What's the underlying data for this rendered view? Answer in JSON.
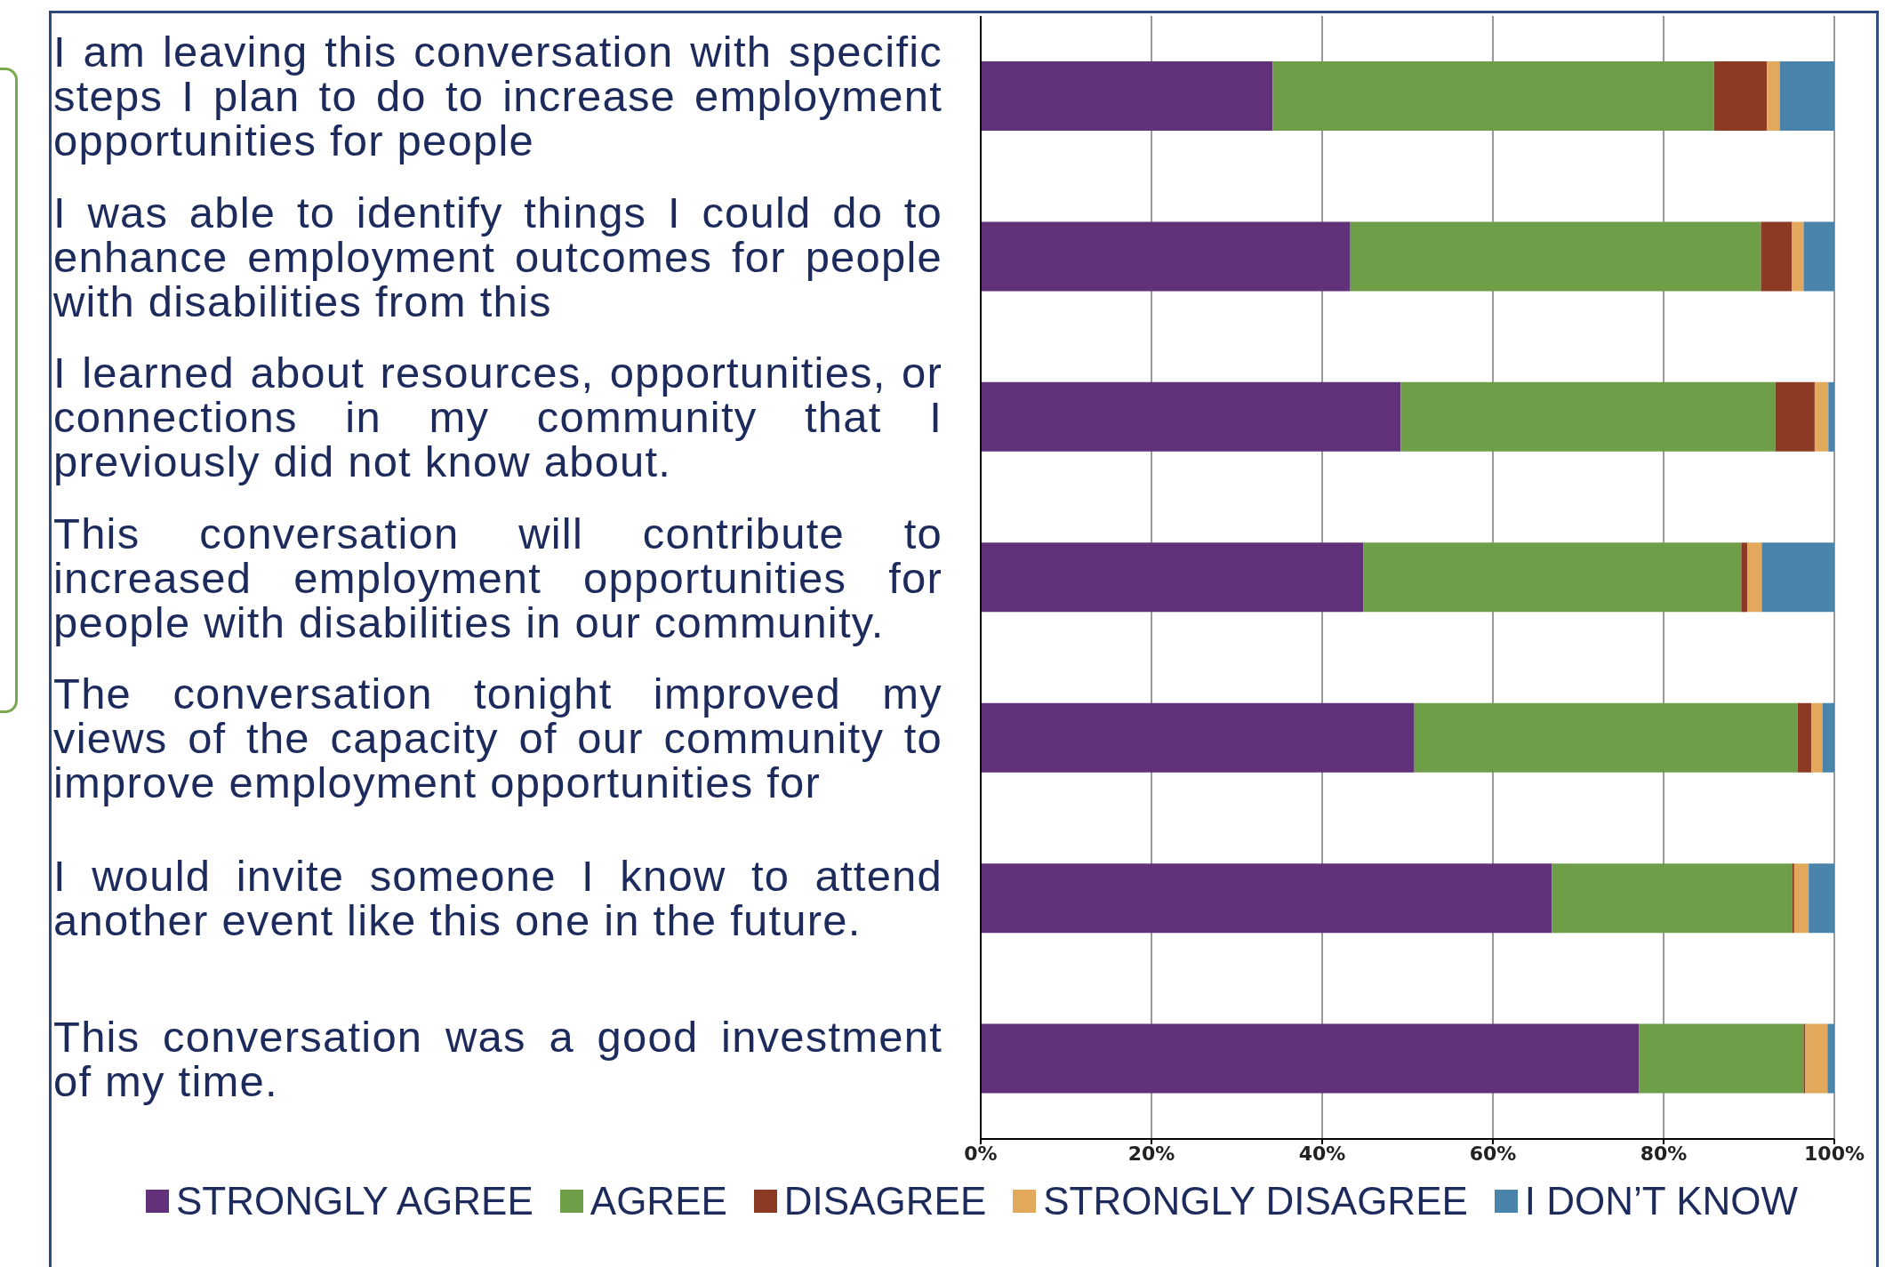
{
  "chart_data": {
    "type": "bar",
    "orientation": "horizontal",
    "stacked": true,
    "categories": [
      "I am leaving this conversation with specific steps I plan to do to increase employment opportunities for people",
      "I was able to identify things I could do to enhance employment outcomes for people with disabilities from this",
      "I learned about resources, opportunities, or connections in my community that I previously did not know about.",
      "This conversation will contribute to increased employment opportunities for people with disabilities in our community.",
      "The conversation tonight improved my views of the capacity of our community to improve employment opportunities for",
      "I would invite someone I know to attend another event like this one in the future.",
      "This conversation was a good investment of my time."
    ],
    "series": [
      {
        "name": "STRONGLY AGREE",
        "color": "#61317a",
        "values": [
          34.2,
          43.3,
          49.2,
          44.8,
          50.8,
          66.9,
          77.1
        ]
      },
      {
        "name": "AGREE",
        "color": "#6f9e48",
        "values": [
          51.7,
          48.1,
          43.9,
          44.3,
          44.9,
          28.2,
          19.3
        ]
      },
      {
        "name": "DISAGREE",
        "color": "#8b3b24",
        "values": [
          6.2,
          3.6,
          4.6,
          0.7,
          1.6,
          0.2,
          0.2
        ]
      },
      {
        "name": "STRONGLY DISAGREE",
        "color": "#e2a85c",
        "values": [
          1.5,
          1.4,
          1.6,
          1.7,
          1.3,
          1.7,
          2.6
        ]
      },
      {
        "name": "I DON’T KNOW",
        "color": "#4a84aa",
        "values": [
          6.4,
          3.6,
          0.7,
          8.5,
          1.4,
          3.0,
          0.8
        ]
      }
    ],
    "xlim": [
      0,
      100
    ],
    "xticks": [
      {
        "value": 0,
        "label": "0%"
      },
      {
        "value": 20,
        "label": "20%"
      },
      {
        "value": 40,
        "label": "40%"
      },
      {
        "value": 60,
        "label": "60%"
      },
      {
        "value": 80,
        "label": "80%"
      },
      {
        "value": 100,
        "label": "100%"
      }
    ],
    "grid": "x",
    "legend": "bottom"
  }
}
